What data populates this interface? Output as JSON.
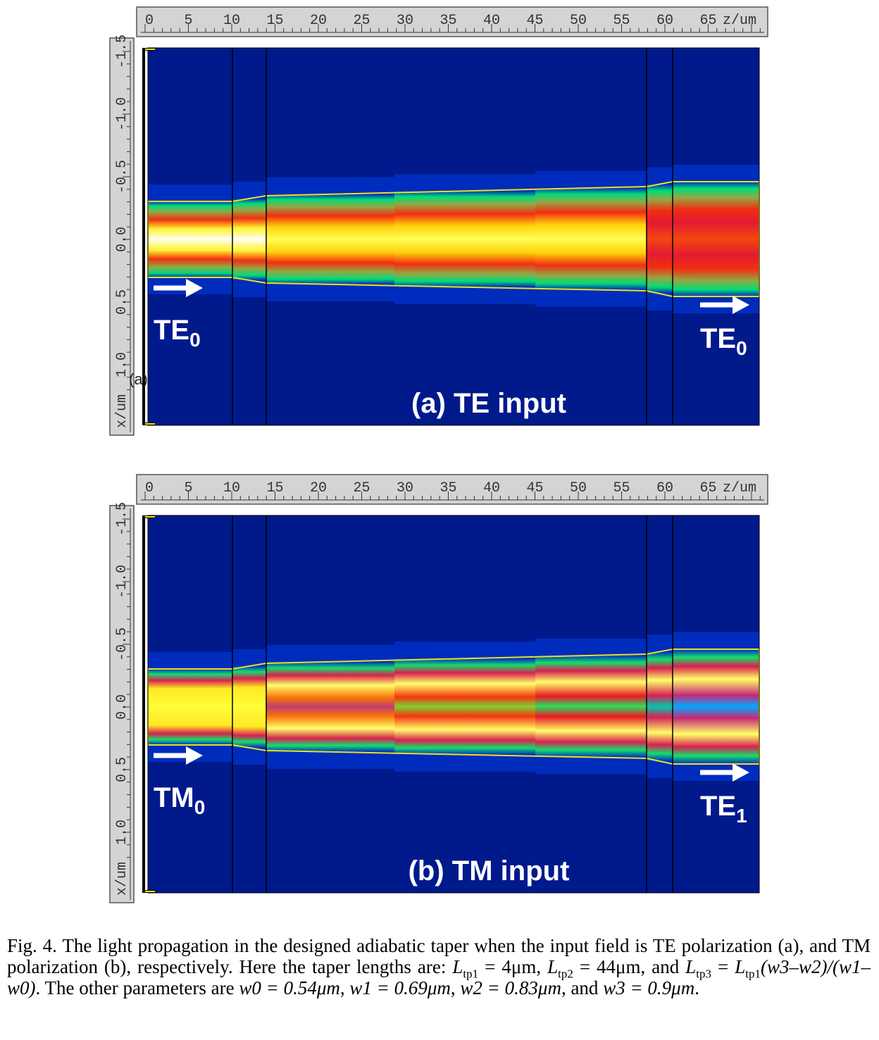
{
  "panels": [
    {
      "id": "a",
      "z_ruler": {
        "ticks": [
          "0",
          "5",
          "10",
          "15",
          "20",
          "25",
          "30",
          "35",
          "40",
          "45",
          "50",
          "55",
          "60",
          "65"
        ],
        "unit_label": "z/um"
      },
      "x_ruler": {
        "ticks": [
          "-1.5",
          "-1.0",
          "-0.5",
          "0.0",
          "0.5",
          "1.0"
        ],
        "unit_label": "x/um"
      },
      "input_mode": {
        "base": "TE",
        "sub": "0"
      },
      "output_mode": {
        "base": "TE",
        "sub": "0"
      },
      "panel_title": "(a) TE input",
      "stray_label": "(a)",
      "field_profile": "single-lobe",
      "boundaries_z": [
        10,
        14,
        58,
        61
      ]
    },
    {
      "id": "b",
      "z_ruler": {
        "ticks": [
          "0",
          "5",
          "10",
          "15",
          "20",
          "25",
          "30",
          "35",
          "40",
          "45",
          "50",
          "55",
          "60",
          "65"
        ],
        "unit_label": "z/um"
      },
      "x_ruler": {
        "ticks": [
          "-1.5",
          "-1.0",
          "-0.5",
          "0.0",
          "0.5",
          "1.0"
        ],
        "unit_label": "x/um"
      },
      "input_mode": {
        "base": "TM",
        "sub": "0"
      },
      "output_mode": {
        "base": "TE",
        "sub": "1"
      },
      "panel_title": "(b) TM input",
      "field_profile": "splitting-two-lobe",
      "boundaries_z": [
        10,
        14,
        58,
        61
      ]
    }
  ],
  "colors": {
    "background": "#001a8c",
    "waveguide_edge": "#f0e020",
    "ruler": "#d4d4d4"
  },
  "caption": {
    "p1": "Fig. 4. The light propagation in the designed adiabatic taper when the input field is TE polarization (a), and TM polarization (b), respectively. Here the taper lengths are: ",
    "L": "L",
    "tp1": "tp1",
    "tp2": "tp2",
    "tp3": "tp3",
    "v_tp1": " = 4μm, ",
    "v_tp2": " = 44μm, and ",
    "eq": " = ",
    "w": "w",
    "frac": "(w3–w2)/(w1–w0)",
    "p2": ". The other parameters are ",
    "v_w0": "w0 = 0.54μm",
    "v_w1": "w1 = 0.69μm",
    "v_w2": "w2 = 0.83μm",
    "v_w3": "w3 = 0.9μm",
    "s_and": ", and ",
    "s_comma": ", ",
    "s_end": "."
  }
}
